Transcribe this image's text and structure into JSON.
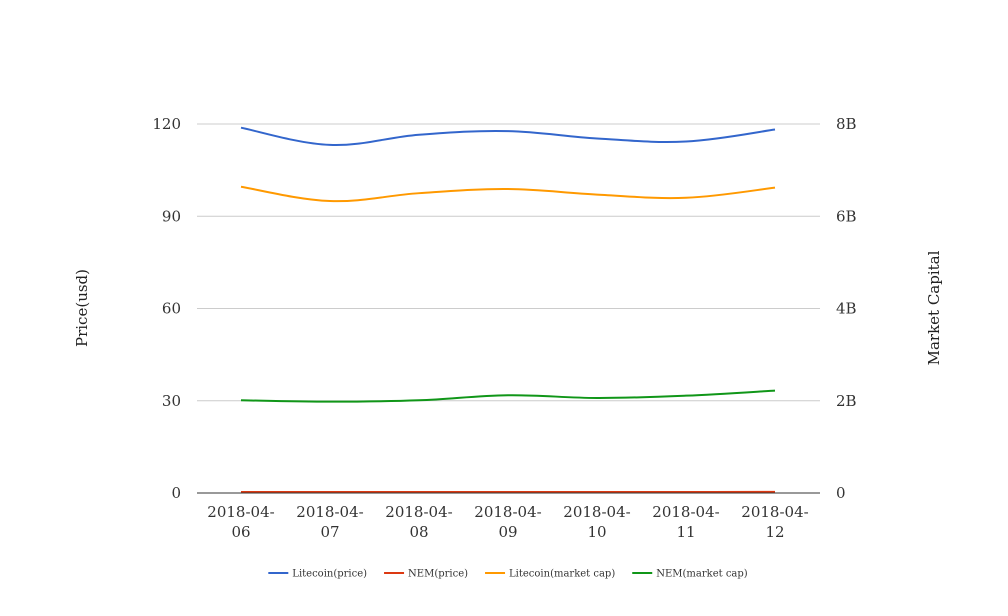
{
  "chart_data": {
    "type": "line",
    "x": [
      "2018-04-06",
      "2018-04-07",
      "2018-04-08",
      "2018-04-09",
      "2018-04-10",
      "2018-04-11",
      "2018-04-12"
    ],
    "x_tick_lines": [
      [
        "2018-04-",
        "06"
      ],
      [
        "2018-04-",
        "07"
      ],
      [
        "2018-04-",
        "08"
      ],
      [
        "2018-04-",
        "09"
      ],
      [
        "2018-04-",
        "10"
      ],
      [
        "2018-04-",
        "11"
      ],
      [
        "2018-04-",
        "12"
      ]
    ],
    "ylabel_left": "Price(usd)",
    "ylabel_right": "Market Capital",
    "ylim_left": [
      0,
      120
    ],
    "ylim_right": [
      0,
      8000000000
    ],
    "yticks_left": [
      0,
      30,
      60,
      90,
      120
    ],
    "yticks_left_labels": [
      "0",
      "30",
      "60",
      "90",
      "120"
    ],
    "yticks_right": [
      0,
      2000000000,
      4000000000,
      6000000000,
      8000000000
    ],
    "yticks_right_labels": [
      "0",
      "2B",
      "4B",
      "6B",
      "8B"
    ],
    "grid": true,
    "legend_position": "bottom",
    "series": [
      {
        "name": "Litecoin(price)",
        "axis": "left",
        "color": "#3366cc",
        "values": [
          118.8,
          113.2,
          116.5,
          117.7,
          115.3,
          114.3,
          118.2
        ]
      },
      {
        "name": "NEM(price)",
        "axis": "left",
        "color": "#dc3912",
        "values": [
          0.33,
          0.31,
          0.32,
          0.34,
          0.33,
          0.33,
          0.36
        ]
      },
      {
        "name": "Litecoin(market cap)",
        "axis": "right",
        "color": "#ff9900",
        "values": [
          6640000000,
          6330000000,
          6500000000,
          6590000000,
          6470000000,
          6400000000,
          6620000000
        ]
      },
      {
        "name": "NEM(market cap)",
        "axis": "right",
        "color": "#109618",
        "values": [
          2010000000,
          1980000000,
          2010000000,
          2120000000,
          2060000000,
          2110000000,
          2220000000
        ]
      }
    ]
  }
}
